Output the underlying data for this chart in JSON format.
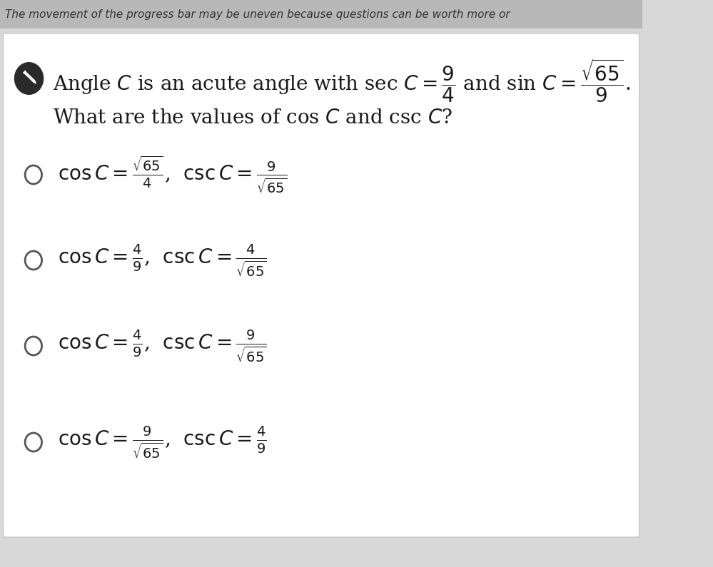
{
  "bg_top_color": "#c8c8c8",
  "bg_main_color": "#d8d8d8",
  "white_bg": "#ffffff",
  "header_text": "The movement of the progress bar may be uneven because questions can be worth more or",
  "text_color": "#1a1a1a",
  "header_color": "#333333",
  "icon_color": "#2a2a2a",
  "font_size_header": 11,
  "font_size_question": 20,
  "font_size_option": 20,
  "options": [
    {
      "cos_expr": "\\frac{\\sqrt{65}}{4}",
      "csc_expr": "\\frac{9}{\\sqrt{65}}"
    },
    {
      "cos_expr": "\\frac{4}{9}",
      "csc_expr": "\\frac{4}{\\sqrt{65}}"
    },
    {
      "cos_expr": "\\frac{4}{9}",
      "csc_expr": "\\frac{9}{\\sqrt{65}}"
    },
    {
      "cos_expr": "\\frac{9}{\\sqrt{65}}",
      "csc_expr": "\\frac{4}{9}"
    }
  ]
}
